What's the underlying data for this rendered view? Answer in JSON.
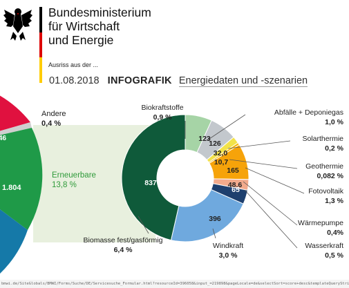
{
  "header": {
    "ministry_line1": "Bundesministerium",
    "ministry_line2": "für Wirtschaft",
    "ministry_line3": "und Energie",
    "excerpt": "Ausriss aus der ...",
    "date": "01.08.2018",
    "infografik": "INFOGRAFIK",
    "subject": "Energiedaten und -szenarien"
  },
  "footer": {
    "url": "bmwi.de/SiteGlobals/BMWI/Forms/Suche/DE/Servicesuche_Formular.html?resourceId=396058&input_=219898&pageLocale=de&selectSort=score+desc&templateQueryString=..."
  },
  "colors": {
    "flag_black": "#000000",
    "flag_red": "#dd0000",
    "flag_gold": "#ffcc00",
    "left_red": "#e0113f",
    "left_green": "#1f9a48",
    "left_blue": "#1579a8",
    "connector": "#e5eed9"
  },
  "chart_data": {
    "type": "pie",
    "donut": true,
    "unit_hint": "",
    "parent": {
      "categories": [
        "Andere",
        "Erneuerbare"
      ],
      "left_values": [
        "46",
        "1.804"
      ],
      "percents": [
        "0,4 %",
        "13,8 %"
      ]
    },
    "categories": [
      "Biokraftstoffe",
      "Abfälle + Deponiegas",
      "Solarthermie",
      "Geothermie",
      "Fotovoltaik",
      "Wärmepumpe",
      "Wasserkraft",
      "Windkraft",
      "Biomasse fest/gasförmig"
    ],
    "values": [
      123,
      126,
      32.0,
      10.7,
      165,
      48.6,
      65,
      396,
      837
    ],
    "value_labels": [
      "123",
      "126",
      "32,0",
      "10,7",
      "165",
      "48,6",
      "65",
      "396",
      "837"
    ],
    "percents": [
      "0,9 %",
      "1,0 %",
      "0,2 %",
      "0,082 %",
      "1,3 %",
      "0,4%",
      "0,5 %",
      "3,0 %",
      "6,4 %"
    ],
    "colors": [
      "#a6d4a6",
      "#c3c8cd",
      "#f2e24a",
      "#f7b500",
      "#f6a30a",
      "#f2aa8c",
      "#1d3f6e",
      "#6fa9de",
      "#0f5a3a"
    ]
  }
}
